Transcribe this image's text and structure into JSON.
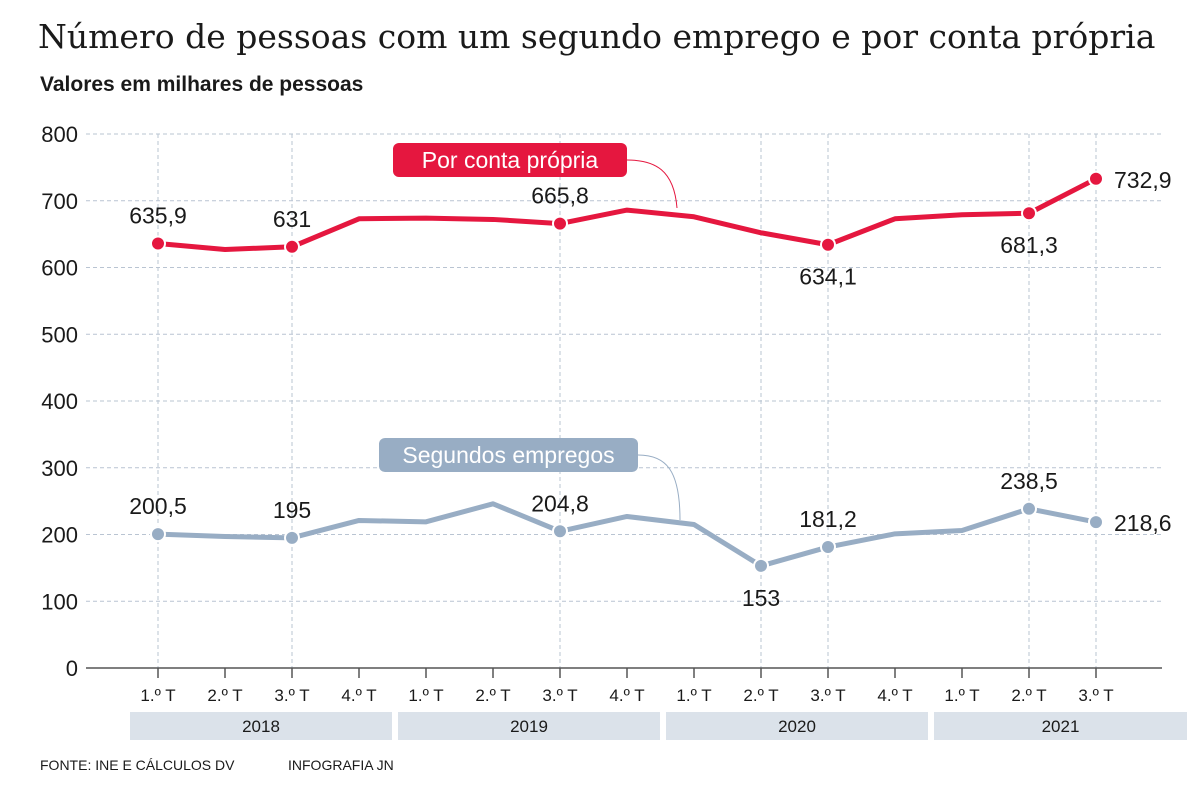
{
  "chart_data": {
    "type": "line",
    "title": "Número de pessoas com um segundo emprego e por conta própria",
    "subtitle": "Valores em milhares de pessoas",
    "ylim": [
      0,
      800
    ],
    "yticks": [
      0,
      100,
      200,
      300,
      400,
      500,
      600,
      700,
      800
    ],
    "grid": true,
    "categories": [
      "1.º T",
      "2.º T",
      "3.º T",
      "4.º T",
      "1.º T",
      "2.º T",
      "3.º T",
      "4.º T",
      "1.º T",
      "2.º T",
      "3.º T",
      "4.º T",
      "1.º T",
      "2.º T",
      "3.º T"
    ],
    "years": [
      {
        "label": "2018",
        "quarters": 4
      },
      {
        "label": "2019",
        "quarters": 4
      },
      {
        "label": "2020",
        "quarters": 4
      },
      {
        "label": "2021",
        "quarters": 3
      }
    ],
    "series": [
      {
        "name": "Por conta própria",
        "color": "#e5173f",
        "values": [
          635.9,
          627,
          631,
          673,
          674,
          672,
          665.8,
          686,
          676,
          652,
          634.1,
          673,
          679,
          681.3,
          732.9
        ],
        "labels": [
          {
            "index": 0,
            "text": "635,9",
            "pos": "above"
          },
          {
            "index": 2,
            "text": "631",
            "pos": "above"
          },
          {
            "index": 6,
            "text": "665,8",
            "pos": "above"
          },
          {
            "index": 10,
            "text": "634,1",
            "pos": "below"
          },
          {
            "index": 13,
            "text": "681,3",
            "pos": "below"
          },
          {
            "index": 14,
            "text": "732,9",
            "pos": "right"
          }
        ]
      },
      {
        "name": "Segundos empregos",
        "color": "#98adc4",
        "values": [
          200.5,
          197,
          195,
          221,
          219,
          246,
          204.8,
          227,
          215,
          153,
          181.2,
          201,
          206,
          238.5,
          218.6
        ],
        "labels": [
          {
            "index": 0,
            "text": "200,5",
            "pos": "above"
          },
          {
            "index": 2,
            "text": "195",
            "pos": "above"
          },
          {
            "index": 6,
            "text": "204,8",
            "pos": "above"
          },
          {
            "index": 9,
            "text": "153",
            "pos": "below"
          },
          {
            "index": 10,
            "text": "181,2",
            "pos": "above"
          },
          {
            "index": 13,
            "text": "238,5",
            "pos": "above"
          },
          {
            "index": 14,
            "text": "218,6",
            "pos": "right"
          }
        ]
      }
    ]
  },
  "footer": {
    "source": "FONTE: INE E CÁLCULOS DV",
    "credit": "INFOGRAFIA JN"
  }
}
